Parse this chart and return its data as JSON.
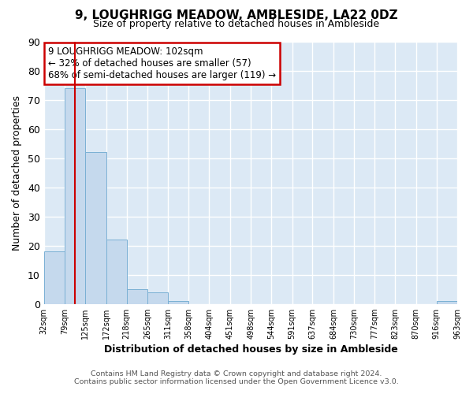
{
  "title": "9, LOUGHRIGG MEADOW, AMBLESIDE, LA22 0DZ",
  "subtitle": "Size of property relative to detached houses in Ambleside",
  "xlabel": "Distribution of detached houses by size in Ambleside",
  "ylabel": "Number of detached properties",
  "bar_edges": [
    32,
    79,
    125,
    172,
    218,
    265,
    311,
    358,
    404,
    451,
    498,
    544,
    591,
    637,
    684,
    730,
    777,
    823,
    870,
    916,
    963
  ],
  "bar_heights": [
    18,
    74,
    52,
    22,
    5,
    4,
    1,
    0,
    0,
    0,
    0,
    0,
    0,
    0,
    0,
    0,
    0,
    0,
    0,
    1
  ],
  "bar_color": "#c5d9ed",
  "bar_edge_color": "#7ab0d4",
  "property_line_x": 102,
  "property_line_color": "#cc0000",
  "ylim": [
    0,
    90
  ],
  "annotation_text": "9 LOUGHRIGG MEADOW: 102sqm\n← 32% of detached houses are smaller (57)\n68% of semi-detached houses are larger (119) →",
  "annotation_box_facecolor": "#ffffff",
  "annotation_box_edgecolor": "#cc0000",
  "footer_line1": "Contains HM Land Registry data © Crown copyright and database right 2024.",
  "footer_line2": "Contains public sector information licensed under the Open Government Licence v3.0.",
  "tick_labels": [
    "32sqm",
    "79sqm",
    "125sqm",
    "172sqm",
    "218sqm",
    "265sqm",
    "311sqm",
    "358sqm",
    "404sqm",
    "451sqm",
    "498sqm",
    "544sqm",
    "591sqm",
    "637sqm",
    "684sqm",
    "730sqm",
    "777sqm",
    "823sqm",
    "870sqm",
    "916sqm",
    "963sqm"
  ],
  "plot_bg_color": "#dce9f5",
  "fig_bg_color": "#ffffff",
  "grid_color": "#ffffff",
  "yticks": [
    0,
    10,
    20,
    30,
    40,
    50,
    60,
    70,
    80,
    90
  ]
}
